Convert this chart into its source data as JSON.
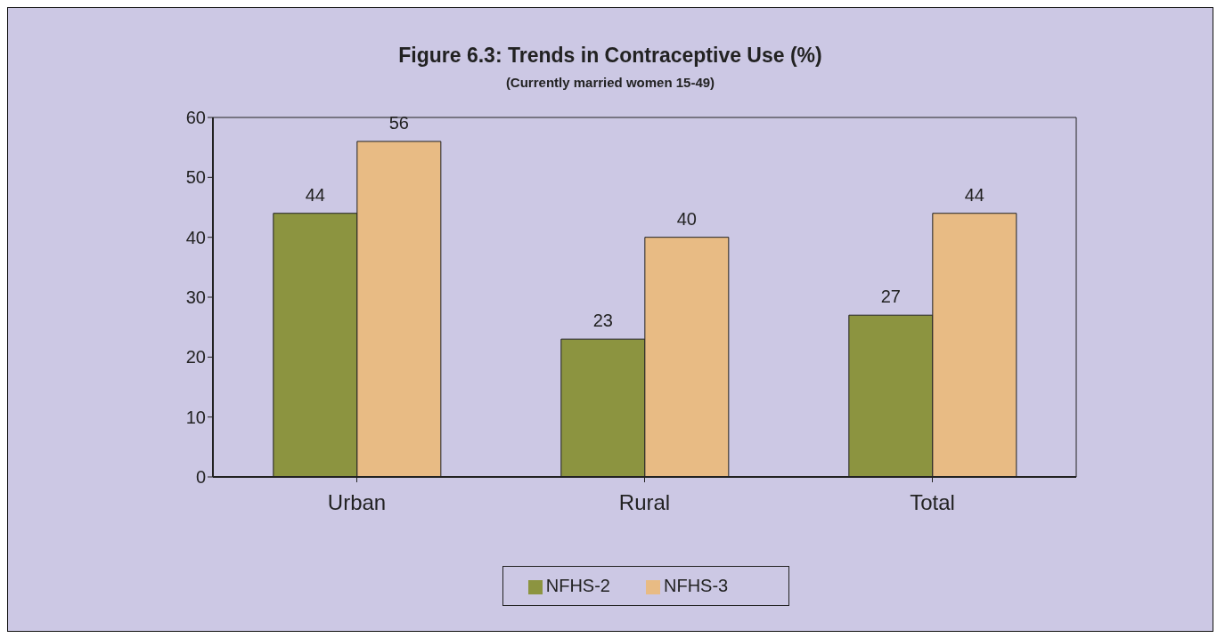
{
  "chart_data": {
    "type": "bar",
    "title": "Figure  6.3: Trends in Contraceptive Use (%)",
    "subtitle": "(Currently married women 15-49)",
    "categories": [
      "Urban",
      "Rural",
      "Total"
    ],
    "series": [
      {
        "name": "NFHS-2",
        "color": "#8c9440",
        "values": [
          44,
          23,
          27
        ]
      },
      {
        "name": "NFHS-3",
        "color": "#e8bb84",
        "values": [
          56,
          40,
          44
        ]
      }
    ],
    "ylim": [
      0,
      60
    ],
    "yticks": [
      0,
      10,
      20,
      30,
      40,
      50,
      60
    ],
    "grid": false,
    "legend": "bottom",
    "data_labels": true
  }
}
